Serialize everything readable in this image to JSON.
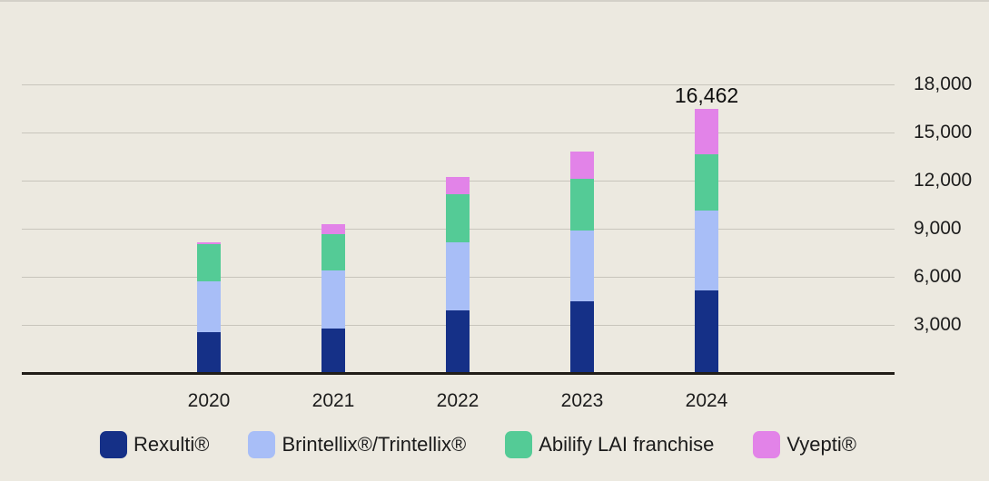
{
  "page": {
    "background_color": "#ece9e0",
    "gridline_color": "#c8c5bc",
    "axis_color": "#211d18",
    "text_color": "#1c1c1c"
  },
  "chart_data": {
    "type": "bar",
    "stacked": true,
    "categories": [
      "2020",
      "2021",
      "2022",
      "2023",
      "2024"
    ],
    "series": [
      {
        "name": "Rexulti®",
        "color": "#153087",
        "values": [
          2550,
          2800,
          3880,
          4450,
          5170
        ]
      },
      {
        "name": "Brintellix®/Trintellix®",
        "color": "#a8bef7",
        "values": [
          3150,
          3600,
          4290,
          4420,
          4940
        ]
      },
      {
        "name": "Abilify LAI franchise",
        "color": "#54cb96",
        "values": [
          2350,
          2240,
          2980,
          3230,
          3505
        ]
      },
      {
        "name": "Vyepti®",
        "color": "#e283e8",
        "values": [
          100,
          660,
          1080,
          1710,
          2847
        ]
      }
    ],
    "totals": [
      8150,
      9300,
      12230,
      13810,
      16462
    ],
    "annotations": [
      {
        "category": "2024",
        "text": "16,462",
        "value": 16462
      }
    ],
    "title": "",
    "xlabel": "",
    "ylabel": "",
    "ylim": [
      0,
      18000
    ],
    "y_ticks": [
      {
        "value": 3000,
        "label": "3,000"
      },
      {
        "value": 6000,
        "label": "6,000"
      },
      {
        "value": 9000,
        "label": "9,000"
      },
      {
        "value": 12000,
        "label": "12,000"
      },
      {
        "value": 15000,
        "label": "15,000"
      },
      {
        "value": 18000,
        "label": "18,000"
      }
    ],
    "grid": true,
    "legend_position": "bottom"
  }
}
